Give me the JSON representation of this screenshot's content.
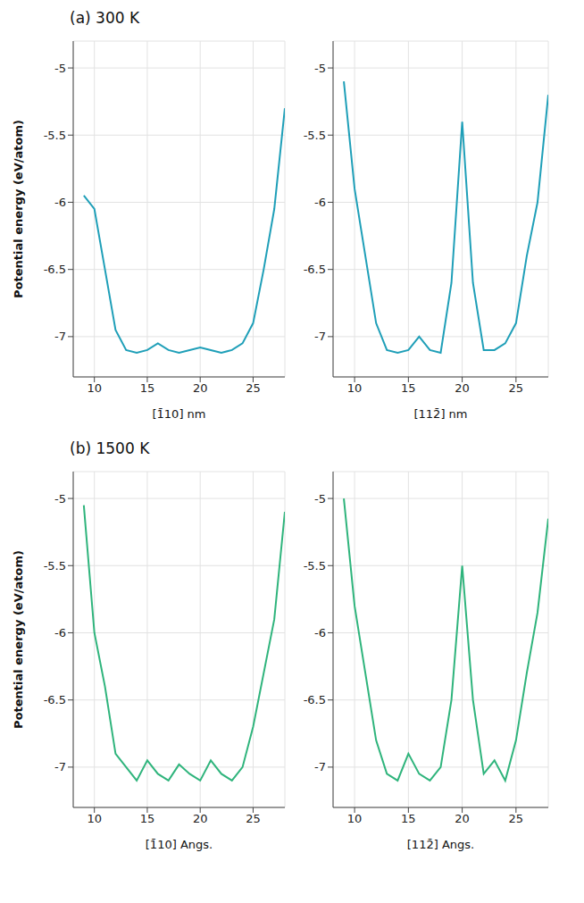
{
  "chart_data": [
    {
      "type": "line",
      "title": "(a) 300 K",
      "ylabel": "Potential energy (eV/atom)",
      "ylim": [
        -7.3,
        -4.8
      ],
      "yticks": [
        -7,
        -6.5,
        -6,
        -5.5,
        -5
      ],
      "grid": true,
      "color": "#1f9fb8",
      "profiles": [
        {
          "xlabel": "[1̄10] nm",
          "xlim": [
            8,
            28
          ],
          "xticks": [
            10,
            15,
            20,
            25
          ],
          "x": [
            9,
            10,
            11,
            12,
            13,
            14,
            15,
            16,
            17,
            18,
            19,
            20,
            21,
            22,
            23,
            24,
            25,
            26,
            27,
            28
          ],
          "values": [
            -5.95,
            -6.05,
            -6.5,
            -6.95,
            -7.1,
            -7.12,
            -7.1,
            -7.05,
            -7.1,
            -7.12,
            -7.1,
            -7.08,
            -7.1,
            -7.12,
            -7.1,
            -7.05,
            -6.9,
            -6.5,
            -6.05,
            -5.3
          ]
        },
        {
          "xlabel": "[112̄] nm",
          "xlim": [
            8,
            28
          ],
          "xticks": [
            10,
            15,
            20,
            25
          ],
          "x": [
            9,
            10,
            11,
            12,
            13,
            14,
            15,
            16,
            17,
            18,
            19,
            20,
            21,
            22,
            23,
            24,
            25,
            26,
            27,
            28
          ],
          "values": [
            -5.1,
            -5.9,
            -6.4,
            -6.9,
            -7.1,
            -7.12,
            -7.1,
            -7.0,
            -7.1,
            -7.12,
            -6.6,
            -5.4,
            -6.6,
            -7.1,
            -7.1,
            -7.05,
            -6.9,
            -6.4,
            -6.0,
            -5.2
          ]
        }
      ]
    },
    {
      "type": "line",
      "title": "(b) 1500 K",
      "ylabel": "Potential energy (eV/atom)",
      "ylim": [
        -7.3,
        -4.8
      ],
      "yticks": [
        -7,
        -6.5,
        -6,
        -5.5,
        -5
      ],
      "grid": true,
      "color": "#2fb47c",
      "profiles": [
        {
          "xlabel": "[1̄10] Angs.",
          "xlim": [
            8,
            28
          ],
          "xticks": [
            10,
            15,
            20,
            25
          ],
          "x": [
            9,
            10,
            11,
            12,
            13,
            14,
            15,
            16,
            17,
            18,
            19,
            20,
            21,
            22,
            23,
            24,
            25,
            26,
            27,
            28
          ],
          "values": [
            -5.05,
            -6.0,
            -6.4,
            -6.9,
            -7.0,
            -7.1,
            -6.95,
            -7.05,
            -7.1,
            -6.98,
            -7.05,
            -7.1,
            -6.95,
            -7.05,
            -7.1,
            -7.0,
            -6.7,
            -6.3,
            -5.9,
            -5.1
          ]
        },
        {
          "xlabel": "[112̄] Angs.",
          "xlim": [
            8,
            28
          ],
          "xticks": [
            10,
            15,
            20,
            25
          ],
          "x": [
            9,
            10,
            11,
            12,
            13,
            14,
            15,
            16,
            17,
            18,
            19,
            20,
            21,
            22,
            23,
            24,
            25,
            26,
            27,
            28
          ],
          "values": [
            -5.0,
            -5.8,
            -6.3,
            -6.8,
            -7.05,
            -7.1,
            -6.9,
            -7.05,
            -7.1,
            -7.0,
            -6.5,
            -5.5,
            -6.5,
            -7.05,
            -6.95,
            -7.1,
            -6.8,
            -6.3,
            -5.85,
            -5.15
          ]
        }
      ]
    }
  ]
}
